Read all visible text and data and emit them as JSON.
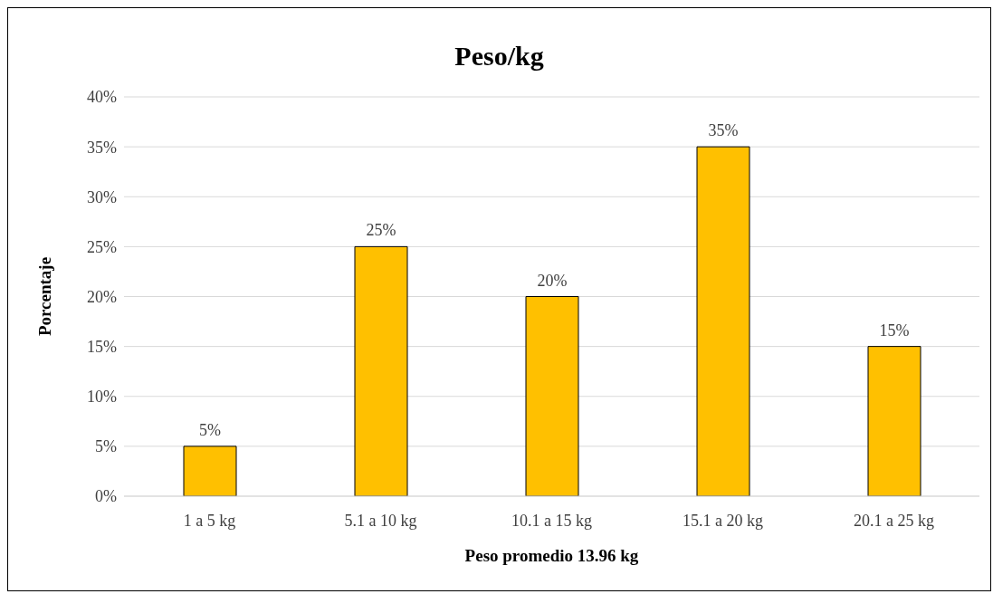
{
  "chart_data": {
    "type": "bar",
    "title": "Peso/kg",
    "xlabel": "Peso promedio 13.96 kg",
    "ylabel": "Porcentaje",
    "categories": [
      "1 a 5 kg",
      "5.1 a 10 kg",
      "10.1 a 15 kg",
      "15.1 a 20 kg",
      "20.1 a 25 kg"
    ],
    "values": [
      5,
      25,
      20,
      35,
      15
    ],
    "value_labels": [
      "5%",
      "25%",
      "20%",
      "35%",
      "15%"
    ],
    "color": "#ffc000",
    "ylim": [
      0,
      40
    ],
    "yticks": [
      {
        "value": 0,
        "label": "0%"
      },
      {
        "value": 5,
        "label": "5%"
      },
      {
        "value": 10,
        "label": "10%"
      },
      {
        "value": 15,
        "label": "15%"
      },
      {
        "value": 20,
        "label": "20%"
      },
      {
        "value": 25,
        "label": "25%"
      },
      {
        "value": 30,
        "label": "30%"
      },
      {
        "value": 35,
        "label": "35%"
      },
      {
        "value": 40,
        "label": "40%"
      }
    ],
    "grid": "y"
  }
}
